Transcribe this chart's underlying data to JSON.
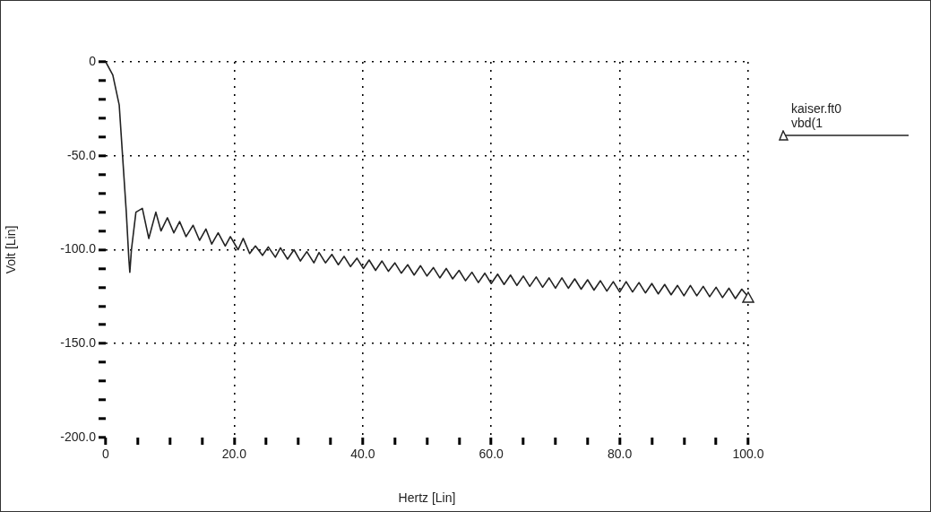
{
  "chart_data": {
    "type": "line",
    "xlabel": "Hertz [Lin]",
    "ylabel": "Volt [Lin]",
    "legend_title": "kaiser.ft0",
    "xlim": [
      0,
      100
    ],
    "ylim": [
      -200,
      0
    ],
    "xticks": [
      0,
      {
        "value": 5,
        "label": null
      },
      {
        "value": 10,
        "label": null
      },
      {
        "value": 15,
        "label": null
      },
      {
        "value": 20,
        "label": "20.0"
      },
      {
        "value": 25,
        "label": null
      },
      {
        "value": 30,
        "label": null
      },
      {
        "value": 35,
        "label": null
      },
      {
        "value": 40,
        "label": "40.0"
      },
      {
        "value": 45,
        "label": null
      },
      {
        "value": 50,
        "label": null
      },
      {
        "value": 55,
        "label": null
      },
      {
        "value": 60,
        "label": "60.0"
      },
      {
        "value": 65,
        "label": null
      },
      {
        "value": 70,
        "label": null
      },
      {
        "value": 75,
        "label": null
      },
      {
        "value": 80,
        "label": "80.0"
      },
      {
        "value": 85,
        "label": null
      },
      {
        "value": 90,
        "label": null
      },
      {
        "value": 95,
        "label": null
      },
      {
        "value": 100,
        "label": "100.0"
      }
    ],
    "yticks": [
      0,
      {
        "value": -10,
        "label": null
      },
      {
        "value": -20,
        "label": null
      },
      {
        "value": -30,
        "label": null
      },
      {
        "value": -40,
        "label": null
      },
      {
        "value": -50,
        "label": "-50.0"
      },
      {
        "value": -60,
        "label": null
      },
      {
        "value": -70,
        "label": null
      },
      {
        "value": -80,
        "label": null
      },
      {
        "value": -90,
        "label": null
      },
      {
        "value": -100,
        "label": "-100.0"
      },
      {
        "value": -110,
        "label": null
      },
      {
        "value": -120,
        "label": null
      },
      {
        "value": -130,
        "label": null
      },
      {
        "value": -140,
        "label": null
      },
      {
        "value": -150,
        "label": "-150.0"
      },
      {
        "value": -160,
        "label": null
      },
      {
        "value": -170,
        "label": null
      },
      {
        "value": -180,
        "label": null
      },
      {
        "value": -190,
        "label": null
      },
      {
        "value": -200,
        "label": "-200.0"
      }
    ],
    "grid": true,
    "legend": "right",
    "line_style": "solid",
    "series": [
      {
        "name": "vbd(1",
        "color": "#222222",
        "x": [
          0,
          1.1,
          2.1,
          2.6,
          3.2,
          3.6,
          3.75,
          4.0,
          4.7,
          5.7,
          6.7,
          7.8,
          8.6,
          9.6,
          10.6,
          11.5,
          12.5,
          13.6,
          14.6,
          15.6,
          16.5,
          17.5,
          18.6,
          19.4,
          20.6,
          21.4,
          22.4,
          23.3,
          24.4,
          25.3,
          26.4,
          27.2,
          28.3,
          29.3,
          30.3,
          31.3,
          32.4,
          33.2,
          34.2,
          35.2,
          36.2,
          37.1,
          38.1,
          39.1,
          40.1,
          41,
          42,
          43,
          44,
          45,
          46,
          47,
          48,
          49,
          50,
          51,
          52,
          53,
          54,
          55,
          56,
          57,
          58,
          59,
          60,
          61,
          62,
          63,
          64,
          65,
          66,
          67,
          68,
          69,
          70,
          71,
          72,
          73,
          74,
          75,
          76,
          77,
          78,
          79,
          80,
          81,
          82,
          83,
          84,
          85,
          86,
          87,
          88,
          89,
          90,
          91,
          92,
          93,
          94,
          95,
          96,
          97,
          98,
          99,
          100
        ],
        "values": [
          0,
          -7,
          -23,
          -49,
          -80,
          -105,
          -112,
          -100,
          -80,
          -78,
          -94,
          -80,
          -90,
          -83,
          -91,
          -85,
          -93,
          -87,
          -95,
          -89,
          -97,
          -91,
          -98,
          -93,
          -100,
          -94,
          -102,
          -98,
          -103,
          -98.5,
          -104,
          -99,
          -105,
          -100,
          -106,
          -101,
          -107,
          -101.5,
          -107,
          -102.5,
          -108,
          -103.5,
          -109,
          -104.5,
          -110,
          -105.5,
          -111,
          -106,
          -111.5,
          -107,
          -112.5,
          -108,
          -113.5,
          -108.5,
          -114,
          -109.5,
          -115,
          -110,
          -115.5,
          -111,
          -116.5,
          -112,
          -117.5,
          -112.5,
          -118,
          -113,
          -118.5,
          -113.5,
          -119,
          -114,
          -119.5,
          -114.5,
          -120,
          -115,
          -120.5,
          -115,
          -120.5,
          -115.5,
          -121,
          -116,
          -121.5,
          -116.5,
          -122,
          -117,
          -122.5,
          -117,
          -122.5,
          -117.5,
          -123,
          -118,
          -123.5,
          -118.5,
          -124,
          -119,
          -124.5,
          -119,
          -124.5,
          -119.5,
          -125,
          -120,
          -125.5,
          -120.5,
          -126,
          -121,
          -125
        ]
      }
    ]
  }
}
